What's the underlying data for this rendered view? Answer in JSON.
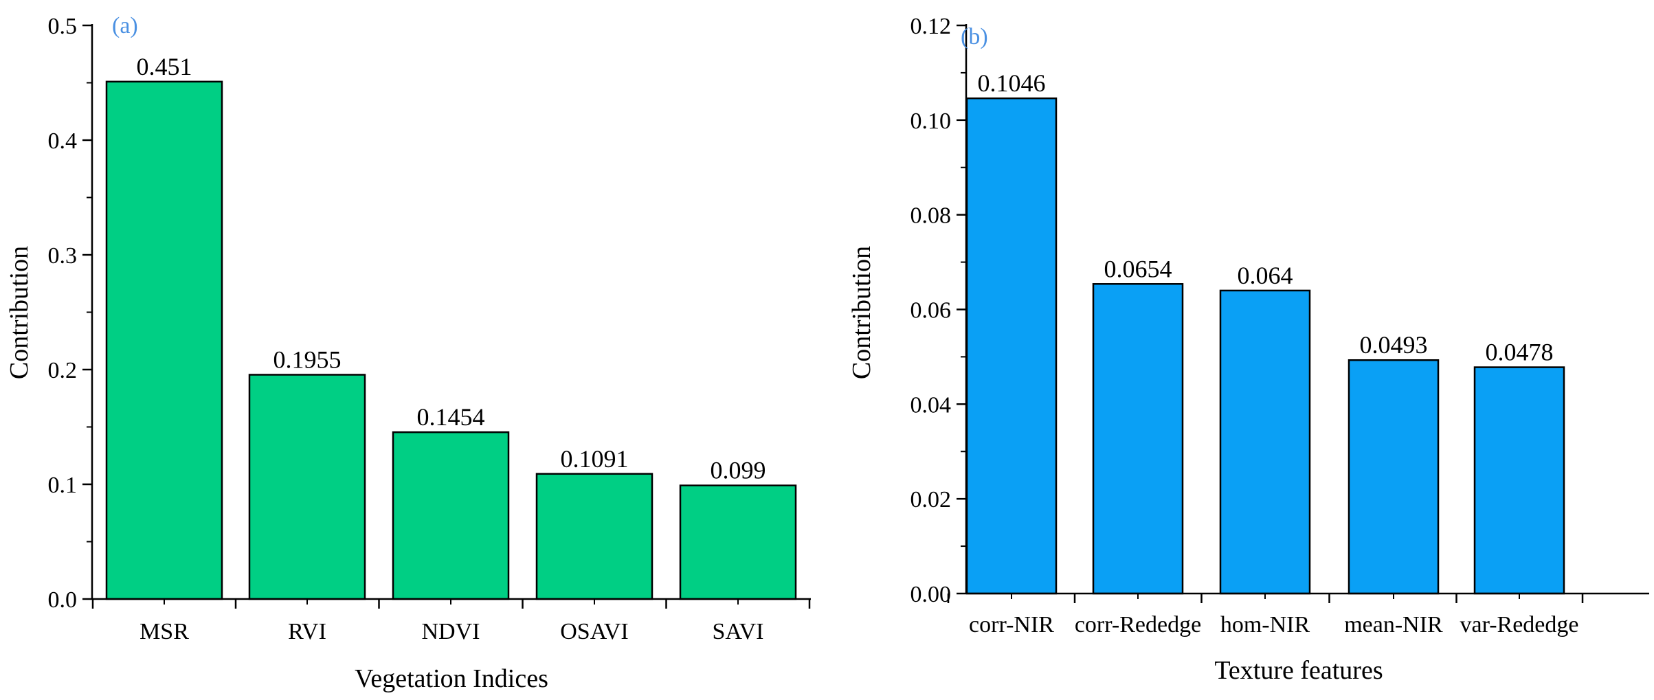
{
  "chart_data": [
    {
      "type": "bar",
      "panel_label": "(a)",
      "categories": [
        "MSR",
        "RVI",
        "NDVI",
        "OSAVI",
        "SAVI"
      ],
      "values": [
        0.451,
        0.1955,
        0.1454,
        0.1091,
        0.099
      ],
      "value_labels": [
        "0.451",
        "0.1955",
        "0.1454",
        "0.1091",
        "0.099"
      ],
      "xlabel": "Vegetation Indices",
      "ylabel": "Contribution",
      "ylim": [
        0,
        0.5
      ],
      "yticks": [
        0.0,
        0.1,
        0.2,
        0.3,
        0.4,
        0.5
      ],
      "ytick_labels": [
        "0.0",
        "0.1",
        "0.2",
        "0.3",
        "0.4",
        "0.5"
      ],
      "bar_color": "#00cf84"
    },
    {
      "type": "bar",
      "panel_label": "(b)",
      "categories": [
        "corr-NIR",
        "corr-Rededge",
        "hom-NIR",
        "mean-NIR",
        "var-Rededge"
      ],
      "values": [
        0.1046,
        0.0654,
        0.064,
        0.0493,
        0.0478
      ],
      "value_labels": [
        "0.1046",
        "0.0654",
        "0.064",
        "0.0493",
        "0.0478"
      ],
      "xlabel": "Texture features",
      "ylabel": "Contribution",
      "ylim": [
        0,
        0.12
      ],
      "yticks": [
        0.0,
        0.02,
        0.04,
        0.06,
        0.08,
        0.1,
        0.12
      ],
      "ytick_labels": [
        "0.00",
        "0.02",
        "0.04",
        "0.06",
        "0.08",
        "0.10",
        "0.12"
      ],
      "bar_color": "#0aa0f5"
    }
  ],
  "colors": {
    "panel_label": "#4a90e2",
    "axis": "#000000"
  }
}
